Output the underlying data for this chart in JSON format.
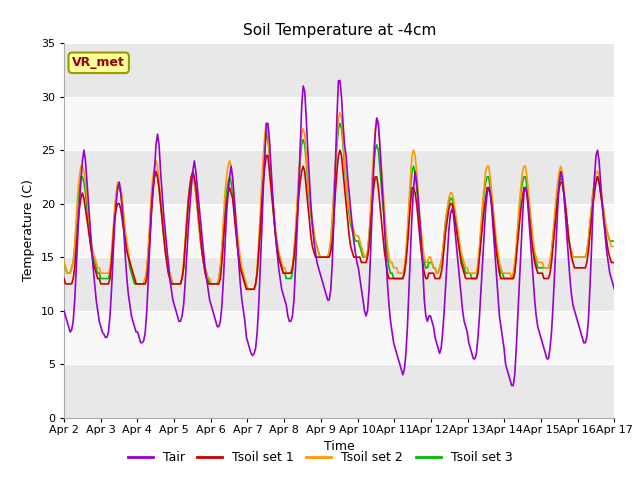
{
  "title": "Soil Temperature at -4cm",
  "xlabel": "Time",
  "ylabel": "Temperature (C)",
  "ylim": [
    0,
    35
  ],
  "yticks": [
    0,
    5,
    10,
    15,
    20,
    25,
    30,
    35
  ],
  "background_color": "#ffffff",
  "plot_bg_color": "#ffffff",
  "band_color_light": "#f0f0f0",
  "band_color_dark": "#e0e0e0",
  "legend_labels": [
    "Tair",
    "Tsoil set 1",
    "Tsoil set 2",
    "Tsoil set 3"
  ],
  "legend_colors": [
    "#9900cc",
    "#cc0000",
    "#ff9900",
    "#00bb00"
  ],
  "annotation_text": "VR_met",
  "annotation_color": "#990000",
  "annotation_bg": "#ffff99",
  "annotation_edge": "#999900",
  "x_tick_labels": [
    "Apr 2",
    "Apr 3",
    "Apr 4",
    "Apr 5",
    "Apr 6",
    "Apr 7",
    "Apr 8",
    "Apr 9",
    "Apr 10",
    "Apr 11",
    "Apr 12",
    "Apr 13",
    "Apr 14",
    "Apr 15",
    "Apr 16",
    "Apr 17"
  ],
  "n_days": 15,
  "points_per_day": 24,
  "Tair": [
    10.0,
    9.5,
    9.0,
    8.5,
    8.0,
    8.2,
    9.0,
    11.0,
    14.0,
    17.0,
    20.0,
    22.0,
    24.0,
    25.0,
    24.0,
    22.0,
    20.0,
    18.0,
    16.0,
    14.0,
    12.5,
    11.0,
    10.0,
    9.0,
    8.5,
    8.0,
    7.8,
    7.5,
    7.5,
    8.0,
    9.5,
    12.0,
    15.0,
    18.0,
    20.0,
    21.5,
    22.0,
    21.0,
    19.5,
    17.5,
    15.0,
    13.0,
    11.5,
    10.5,
    9.5,
    9.0,
    8.5,
    8.0,
    8.0,
    7.5,
    7.0,
    7.0,
    7.2,
    8.0,
    10.0,
    13.0,
    16.5,
    19.5,
    21.5,
    23.0,
    25.5,
    26.5,
    25.5,
    23.0,
    21.0,
    19.0,
    17.5,
    16.0,
    14.5,
    13.0,
    12.0,
    11.0,
    10.5,
    10.0,
    9.5,
    9.0,
    9.0,
    9.5,
    10.5,
    12.5,
    15.0,
    17.5,
    19.5,
    21.5,
    23.0,
    24.0,
    23.0,
    21.5,
    20.0,
    18.5,
    17.0,
    15.5,
    14.0,
    13.0,
    12.0,
    11.0,
    10.5,
    10.0,
    9.5,
    9.0,
    8.5,
    8.5,
    9.0,
    10.5,
    13.0,
    16.0,
    19.0,
    21.0,
    22.5,
    23.5,
    22.5,
    20.5,
    18.5,
    16.5,
    14.5,
    12.5,
    11.0,
    10.0,
    9.0,
    7.5,
    7.0,
    6.5,
    6.0,
    5.8,
    6.0,
    6.5,
    8.0,
    10.5,
    14.0,
    17.5,
    21.5,
    24.5,
    27.5,
    27.5,
    26.0,
    23.5,
    21.0,
    19.0,
    17.0,
    15.5,
    14.0,
    13.0,
    12.0,
    11.5,
    11.0,
    10.5,
    9.5,
    9.0,
    9.0,
    9.5,
    11.0,
    14.0,
    17.5,
    21.0,
    25.0,
    29.0,
    31.0,
    30.5,
    28.0,
    25.0,
    22.5,
    20.0,
    18.0,
    16.5,
    15.5,
    14.5,
    14.0,
    13.5,
    13.0,
    12.5,
    12.0,
    11.5,
    11.0,
    11.0,
    12.0,
    14.5,
    18.5,
    23.5,
    28.0,
    31.5,
    31.5,
    30.0,
    27.5,
    25.5,
    24.5,
    22.5,
    21.0,
    19.5,
    18.0,
    16.5,
    15.5,
    14.5,
    14.0,
    13.0,
    12.0,
    11.0,
    10.0,
    9.5,
    10.0,
    12.0,
    15.5,
    19.5,
    23.5,
    26.5,
    28.0,
    27.5,
    25.5,
    23.0,
    20.5,
    18.0,
    15.0,
    12.5,
    10.5,
    9.0,
    8.0,
    7.0,
    6.5,
    6.0,
    5.5,
    5.0,
    4.5,
    4.0,
    4.5,
    6.0,
    8.5,
    12.0,
    15.5,
    19.0,
    21.5,
    23.0,
    22.0,
    20.5,
    18.5,
    16.5,
    14.0,
    11.0,
    9.5,
    9.0,
    9.5,
    9.5,
    9.0,
    8.5,
    7.5,
    7.0,
    6.5,
    6.0,
    6.5,
    8.0,
    10.0,
    12.5,
    15.0,
    17.5,
    19.0,
    19.5,
    19.0,
    17.5,
    16.0,
    14.5,
    13.0,
    11.5,
    10.0,
    9.0,
    8.5,
    8.0,
    7.0,
    6.5,
    6.0,
    5.5,
    5.5,
    6.0,
    7.5,
    9.5,
    12.0,
    14.5,
    17.0,
    19.5,
    21.0,
    21.5,
    21.0,
    19.5,
    17.5,
    15.5,
    13.5,
    11.5,
    9.5,
    8.5,
    7.5,
    6.5,
    5.0,
    4.5,
    4.0,
    3.5,
    3.0,
    3.0,
    4.0,
    6.5,
    9.5,
    12.5,
    15.5,
    18.5,
    21.0,
    21.5,
    21.0,
    19.0,
    17.0,
    15.0,
    13.0,
    11.0,
    9.5,
    8.5,
    8.0,
    7.5,
    7.0,
    6.5,
    6.0,
    5.5,
    5.5,
    6.5,
    8.0,
    10.5,
    13.5,
    16.5,
    19.5,
    22.0,
    23.0,
    22.5,
    21.0,
    19.0,
    17.0,
    15.0,
    13.0,
    11.5,
    10.5,
    10.0,
    9.5,
    9.0,
    8.5,
    8.0,
    7.5,
    7.0,
    7.0,
    7.5,
    9.0,
    12.0,
    15.5,
    19.5,
    22.5,
    24.5,
    25.0,
    24.0,
    22.0,
    20.0,
    18.5,
    17.0,
    15.5,
    14.5,
    13.5,
    13.0,
    12.5,
    12.0
  ],
  "Tsoil1": [
    13.0,
    12.5,
    12.5,
    12.5,
    12.5,
    12.5,
    13.0,
    14.0,
    16.0,
    18.0,
    19.5,
    20.5,
    21.0,
    20.5,
    19.5,
    18.5,
    17.5,
    16.5,
    15.5,
    14.5,
    14.0,
    13.5,
    13.0,
    13.0,
    12.5,
    12.5,
    12.5,
    12.5,
    12.5,
    12.5,
    13.0,
    14.5,
    16.5,
    18.5,
    19.5,
    20.0,
    20.0,
    19.5,
    18.5,
    17.5,
    16.5,
    15.5,
    15.0,
    14.5,
    14.0,
    13.5,
    13.0,
    12.5,
    12.5,
    12.5,
    12.5,
    12.5,
    12.5,
    12.5,
    13.0,
    14.5,
    16.5,
    19.0,
    21.0,
    22.5,
    23.0,
    22.5,
    21.5,
    20.0,
    18.5,
    17.0,
    15.5,
    14.5,
    13.5,
    13.0,
    12.5,
    12.5,
    12.5,
    12.5,
    12.5,
    12.5,
    12.5,
    13.0,
    14.0,
    16.0,
    18.0,
    20.0,
    21.5,
    22.5,
    23.0,
    22.5,
    21.5,
    20.0,
    18.5,
    17.0,
    15.5,
    14.5,
    13.5,
    13.0,
    12.5,
    12.5,
    12.5,
    12.5,
    12.5,
    12.5,
    12.5,
    12.5,
    13.0,
    14.5,
    16.5,
    18.5,
    20.0,
    21.0,
    21.5,
    21.0,
    20.5,
    19.0,
    17.5,
    16.0,
    15.0,
    14.0,
    13.5,
    13.0,
    12.5,
    12.0,
    12.0,
    12.0,
    12.0,
    12.0,
    12.0,
    12.5,
    13.5,
    15.5,
    17.5,
    20.0,
    22.0,
    23.5,
    24.5,
    24.5,
    23.0,
    21.5,
    20.0,
    18.5,
    17.0,
    16.0,
    15.0,
    14.5,
    14.0,
    13.5,
    13.5,
    13.5,
    13.5,
    13.5,
    13.5,
    14.0,
    15.0,
    16.5,
    18.5,
    20.5,
    22.0,
    23.0,
    23.5,
    23.0,
    21.5,
    20.0,
    18.5,
    17.0,
    16.0,
    15.5,
    15.0,
    15.0,
    15.0,
    15.0,
    15.0,
    15.0,
    15.0,
    15.0,
    15.0,
    15.0,
    15.5,
    16.5,
    18.5,
    21.0,
    23.0,
    24.5,
    25.0,
    24.5,
    23.0,
    21.5,
    20.0,
    18.5,
    17.0,
    16.0,
    15.5,
    15.0,
    15.0,
    15.0,
    15.0,
    15.0,
    14.5,
    14.5,
    14.5,
    14.5,
    15.0,
    16.0,
    18.0,
    20.0,
    21.5,
    22.5,
    22.5,
    21.5,
    20.0,
    18.5,
    17.0,
    15.5,
    14.5,
    13.5,
    13.0,
    13.0,
    13.0,
    13.0,
    13.0,
    13.0,
    13.0,
    13.0,
    13.0,
    13.0,
    13.5,
    14.5,
    16.0,
    18.0,
    20.0,
    21.5,
    21.5,
    21.0,
    20.0,
    18.5,
    17.0,
    15.5,
    14.5,
    13.5,
    13.0,
    13.0,
    13.5,
    13.5,
    13.5,
    13.5,
    13.0,
    13.0,
    13.0,
    13.0,
    13.5,
    14.5,
    16.0,
    17.5,
    18.5,
    19.5,
    20.0,
    20.0,
    19.5,
    18.5,
    17.5,
    16.5,
    15.5,
    14.5,
    14.0,
    13.5,
    13.0,
    13.0,
    13.0,
    13.0,
    13.0,
    13.0,
    13.0,
    13.0,
    13.5,
    15.0,
    16.5,
    18.0,
    19.5,
    20.5,
    21.5,
    21.5,
    21.0,
    20.0,
    18.5,
    17.0,
    15.5,
    14.5,
    13.5,
    13.0,
    13.0,
    13.0,
    13.0,
    13.0,
    13.0,
    13.0,
    13.0,
    13.0,
    13.5,
    15.0,
    16.5,
    18.0,
    19.5,
    20.5,
    21.5,
    21.5,
    21.0,
    19.5,
    18.0,
    16.5,
    15.5,
    14.5,
    14.0,
    13.5,
    13.5,
    13.5,
    13.5,
    13.0,
    13.0,
    13.0,
    13.0,
    13.5,
    14.5,
    16.0,
    17.5,
    19.0,
    20.5,
    21.5,
    22.0,
    22.0,
    21.0,
    20.0,
    18.5,
    17.0,
    16.0,
    15.0,
    14.5,
    14.0,
    14.0,
    14.0,
    14.0,
    14.0,
    14.0,
    14.0,
    14.0,
    14.5,
    15.5,
    17.0,
    18.5,
    20.0,
    21.0,
    22.0,
    22.5,
    22.0,
    21.0,
    20.0,
    18.5,
    17.5,
    16.5,
    15.5,
    15.0,
    14.5,
    14.5,
    14.5
  ],
  "Tsoil2": [
    14.5,
    14.0,
    13.5,
    13.5,
    13.5,
    14.0,
    14.5,
    16.0,
    18.5,
    21.0,
    22.5,
    23.5,
    23.5,
    23.0,
    22.0,
    20.5,
    19.0,
    17.5,
    16.0,
    15.5,
    15.0,
    14.5,
    14.0,
    14.0,
    13.5,
    13.5,
    13.5,
    13.5,
    13.5,
    13.5,
    14.0,
    15.5,
    17.5,
    19.5,
    21.0,
    22.0,
    22.0,
    21.5,
    20.5,
    19.0,
    17.5,
    16.5,
    15.5,
    14.5,
    14.0,
    13.5,
    13.0,
    12.5,
    12.5,
    12.5,
    12.5,
    12.5,
    12.5,
    13.0,
    14.0,
    16.0,
    18.5,
    21.0,
    22.5,
    23.5,
    24.0,
    23.5,
    22.0,
    20.5,
    19.0,
    17.5,
    16.5,
    15.5,
    14.5,
    13.5,
    13.0,
    12.5,
    12.5,
    12.5,
    12.5,
    12.5,
    12.5,
    13.0,
    14.5,
    16.5,
    18.5,
    20.5,
    21.5,
    22.5,
    22.5,
    22.0,
    21.0,
    19.5,
    18.0,
    16.5,
    15.5,
    14.5,
    14.0,
    13.5,
    13.0,
    13.0,
    12.5,
    12.5,
    12.5,
    12.5,
    12.5,
    13.0,
    14.0,
    16.0,
    18.5,
    21.0,
    22.5,
    23.5,
    24.0,
    23.5,
    22.0,
    20.5,
    19.0,
    17.5,
    16.0,
    15.0,
    14.0,
    13.5,
    13.0,
    12.5,
    12.0,
    12.0,
    12.0,
    12.0,
    12.0,
    12.5,
    14.0,
    16.5,
    19.0,
    22.0,
    24.5,
    26.5,
    27.5,
    26.5,
    24.5,
    22.5,
    20.5,
    19.0,
    17.5,
    16.5,
    15.5,
    15.0,
    14.5,
    14.0,
    14.0,
    13.5,
    13.5,
    13.5,
    13.5,
    14.0,
    15.5,
    17.5,
    20.0,
    22.5,
    24.5,
    26.5,
    27.0,
    26.5,
    24.5,
    22.5,
    21.0,
    19.5,
    18.5,
    17.5,
    16.5,
    16.0,
    15.5,
    15.0,
    15.0,
    15.0,
    15.0,
    15.0,
    15.0,
    15.5,
    16.5,
    18.5,
    21.0,
    23.5,
    26.0,
    28.0,
    28.5,
    28.0,
    26.0,
    24.0,
    22.0,
    20.5,
    19.5,
    18.5,
    18.0,
    17.5,
    17.0,
    17.0,
    17.0,
    16.5,
    16.0,
    15.5,
    15.0,
    15.0,
    15.5,
    17.0,
    19.5,
    22.5,
    25.0,
    27.0,
    28.0,
    27.5,
    25.5,
    23.5,
    21.5,
    19.5,
    17.5,
    16.0,
    15.0,
    14.5,
    14.5,
    14.0,
    14.0,
    14.0,
    13.5,
    13.5,
    13.5,
    13.5,
    14.0,
    15.5,
    17.5,
    20.0,
    22.5,
    24.5,
    25.0,
    24.5,
    23.0,
    21.0,
    19.0,
    17.5,
    16.0,
    15.0,
    14.5,
    14.5,
    15.0,
    15.0,
    14.5,
    14.0,
    14.0,
    13.5,
    13.5,
    14.0,
    14.5,
    15.5,
    17.0,
    18.5,
    19.5,
    20.5,
    21.0,
    21.0,
    20.5,
    19.5,
    18.5,
    17.5,
    16.5,
    15.5,
    15.0,
    14.5,
    14.0,
    14.0,
    13.5,
    13.5,
    13.5,
    13.5,
    13.5,
    13.5,
    14.5,
    16.0,
    18.0,
    20.0,
    21.5,
    23.0,
    23.5,
    23.5,
    22.5,
    21.0,
    19.5,
    18.0,
    16.5,
    15.5,
    14.5,
    14.0,
    13.5,
    13.5,
    13.5,
    13.5,
    13.5,
    13.5,
    13.0,
    13.5,
    14.5,
    16.0,
    18.0,
    20.0,
    21.5,
    23.0,
    23.5,
    23.5,
    22.5,
    21.0,
    19.5,
    18.0,
    16.5,
    15.5,
    15.0,
    14.5,
    14.5,
    14.5,
    14.5,
    14.0,
    14.0,
    14.0,
    14.0,
    14.5,
    15.5,
    17.0,
    19.0,
    20.5,
    22.0,
    23.0,
    23.5,
    23.0,
    21.5,
    20.0,
    18.5,
    17.0,
    16.0,
    15.5,
    15.0,
    15.0,
    15.0,
    15.0,
    15.0,
    15.0,
    15.0,
    15.0,
    15.0,
    15.5,
    16.5,
    18.0,
    19.5,
    21.0,
    22.0,
    23.0,
    23.0,
    22.5,
    21.5,
    20.5,
    19.5,
    18.5,
    17.5,
    17.0,
    16.5,
    16.0,
    16.0,
    16.0
  ],
  "Tsoil3": [
    14.5,
    14.0,
    13.5,
    13.5,
    13.5,
    14.0,
    14.5,
    16.0,
    18.0,
    20.0,
    21.5,
    22.5,
    22.5,
    22.0,
    21.0,
    19.5,
    18.0,
    16.5,
    15.5,
    15.0,
    14.5,
    14.0,
    13.5,
    13.5,
    13.0,
    13.0,
    13.0,
    13.0,
    13.0,
    13.0,
    13.5,
    15.0,
    17.0,
    19.0,
    20.5,
    21.5,
    21.5,
    21.0,
    20.0,
    18.5,
    17.0,
    16.0,
    15.0,
    14.0,
    13.5,
    13.0,
    12.5,
    12.5,
    12.5,
    12.5,
    12.5,
    12.5,
    12.5,
    13.0,
    13.5,
    15.5,
    17.5,
    19.5,
    21.5,
    22.5,
    23.0,
    22.5,
    21.5,
    20.0,
    18.5,
    17.0,
    16.0,
    15.0,
    14.0,
    13.5,
    13.0,
    12.5,
    12.5,
    12.5,
    12.5,
    12.5,
    12.5,
    13.0,
    14.0,
    16.0,
    18.0,
    20.0,
    21.5,
    22.5,
    22.5,
    22.0,
    21.0,
    19.5,
    18.0,
    16.5,
    15.5,
    14.5,
    14.0,
    13.5,
    13.0,
    12.5,
    12.5,
    12.5,
    12.5,
    12.5,
    12.5,
    13.0,
    14.0,
    15.5,
    17.5,
    19.5,
    21.0,
    22.0,
    22.5,
    22.0,
    21.0,
    19.5,
    18.0,
    16.5,
    15.0,
    14.0,
    13.5,
    13.0,
    12.5,
    12.0,
    12.0,
    12.0,
    12.0,
    12.0,
    12.0,
    12.5,
    13.5,
    15.5,
    18.0,
    21.0,
    23.5,
    25.5,
    26.5,
    26.0,
    24.5,
    22.5,
    20.5,
    18.5,
    17.0,
    15.5,
    15.0,
    14.5,
    14.0,
    13.5,
    13.5,
    13.0,
    13.0,
    13.0,
    13.0,
    13.5,
    15.0,
    17.0,
    19.5,
    22.0,
    24.0,
    25.5,
    26.0,
    25.5,
    24.0,
    22.0,
    20.5,
    19.0,
    18.0,
    17.0,
    16.5,
    16.0,
    15.5,
    15.0,
    15.0,
    15.0,
    15.0,
    15.0,
    15.0,
    15.5,
    16.5,
    18.5,
    21.0,
    23.5,
    25.5,
    27.0,
    27.5,
    27.0,
    25.5,
    23.5,
    22.0,
    20.5,
    19.0,
    18.0,
    17.5,
    17.0,
    16.5,
    16.5,
    16.5,
    16.0,
    15.5,
    15.0,
    15.0,
    15.0,
    15.5,
    17.0,
    19.0,
    21.5,
    23.5,
    25.0,
    25.5,
    25.0,
    23.5,
    21.5,
    20.0,
    18.0,
    16.5,
    15.0,
    14.0,
    13.5,
    13.5,
    13.0,
    13.0,
    13.0,
    13.0,
    13.0,
    13.0,
    13.0,
    13.5,
    15.0,
    17.0,
    19.5,
    21.5,
    23.0,
    23.5,
    23.0,
    21.5,
    20.0,
    18.0,
    16.5,
    15.5,
    14.5,
    14.0,
    14.0,
    14.5,
    14.5,
    14.5,
    14.0,
    14.0,
    13.5,
    13.5,
    14.0,
    14.5,
    15.5,
    17.0,
    18.5,
    19.5,
    20.0,
    20.5,
    20.5,
    20.0,
    19.0,
    18.0,
    17.0,
    16.0,
    15.0,
    14.5,
    14.0,
    13.5,
    13.5,
    13.5,
    13.5,
    13.0,
    13.0,
    13.0,
    13.0,
    14.0,
    15.5,
    17.5,
    19.5,
    21.0,
    22.0,
    22.5,
    22.5,
    21.5,
    20.0,
    18.5,
    17.0,
    16.0,
    15.0,
    14.0,
    13.5,
    13.5,
    13.0,
    13.0,
    13.0,
    13.0,
    13.0,
    13.0,
    13.0,
    14.0,
    15.5,
    17.5,
    19.5,
    21.0,
    22.0,
    22.5,
    22.5,
    21.5,
    20.0,
    18.5,
    17.0,
    16.0,
    15.0,
    14.5,
    14.0,
    14.0,
    14.0,
    14.0,
    14.0,
    14.0,
    14.0,
    14.0,
    14.5,
    15.5,
    17.0,
    18.5,
    20.0,
    21.5,
    22.0,
    22.5,
    22.0,
    21.0,
    19.5,
    18.5,
    17.0,
    16.0,
    15.5,
    15.0,
    15.0,
    15.0,
    15.0,
    15.0,
    15.0,
    15.0,
    15.0,
    15.0,
    15.5,
    16.5,
    18.0,
    19.5,
    21.0,
    22.0,
    22.5,
    22.5,
    22.0,
    21.0,
    20.0,
    19.0,
    18.0,
    17.5,
    17.0,
    16.5,
    16.5,
    16.5,
    16.5
  ]
}
